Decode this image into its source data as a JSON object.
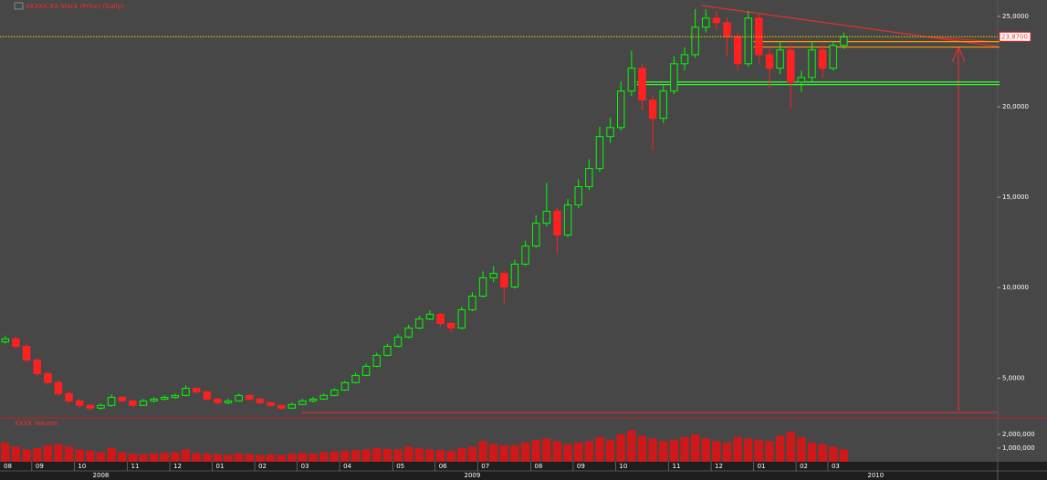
{
  "chart_data": [
    {
      "type": "candlestick",
      "title": "XXXXX.XX Stock (Price) (Daily)",
      "categories": [
        "08",
        null,
        null,
        "09",
        null,
        null,
        null,
        "10",
        null,
        null,
        null,
        null,
        "11",
        null,
        null,
        null,
        "12",
        null,
        null,
        null,
        "01",
        null,
        null,
        null,
        "02",
        null,
        null,
        null,
        "03",
        null,
        null,
        null,
        "04",
        null,
        null,
        null,
        null,
        "05",
        null,
        null,
        null,
        "06",
        null,
        null,
        null,
        "07",
        null,
        null,
        null,
        null,
        "08",
        null,
        null,
        null,
        "09",
        null,
        null,
        null,
        "10",
        null,
        null,
        null,
        null,
        "11",
        null,
        null,
        null,
        "12",
        null,
        null,
        null,
        "01",
        null,
        null,
        null,
        "02",
        null,
        null,
        "03",
        null,
        null,
        null,
        null,
        null,
        null,
        null,
        null,
        null,
        null,
        null,
        null,
        null,
        null,
        null
      ],
      "year_labels": [
        null,
        null,
        null,
        null,
        null,
        null,
        null,
        null,
        null,
        "2008",
        null,
        null,
        null,
        null,
        null,
        null,
        null,
        null,
        null,
        null,
        null,
        null,
        null,
        null,
        null,
        null,
        null,
        null,
        null,
        null,
        null,
        null,
        null,
        null,
        null,
        null,
        null,
        null,
        null,
        null,
        null,
        null,
        null,
        null,
        "2009",
        null,
        null,
        null,
        null,
        null,
        null,
        null,
        null,
        null,
        null,
        null,
        null,
        null,
        null,
        null,
        null,
        null,
        null,
        null,
        null,
        null,
        null,
        null,
        null,
        null,
        null,
        null,
        null,
        null,
        null,
        null,
        null,
        null,
        null,
        null,
        null,
        null,
        "2010",
        null,
        null,
        null,
        null,
        null,
        null,
        null,
        null,
        null,
        null,
        null
      ],
      "open": [
        7.0,
        7.17,
        6.76,
        6.0,
        5.25,
        4.75,
        4.14,
        3.74,
        3.49,
        3.34,
        3.49,
        3.94,
        3.74,
        3.49,
        3.74,
        3.84,
        3.94,
        4.04,
        4.44,
        4.24,
        3.84,
        3.64,
        3.74,
        4.04,
        3.84,
        3.64,
        3.49,
        3.34,
        3.54,
        3.74,
        3.84,
        4.04,
        4.34,
        4.75,
        5.15,
        5.65,
        6.26,
        6.76,
        7.27,
        7.77,
        8.27,
        8.53,
        8.02,
        7.77,
        8.78,
        9.53,
        10.54,
        10.79,
        10.04,
        11.3,
        12.3,
        13.56,
        14.22,
        12.91,
        14.57,
        15.58,
        16.59,
        18.35,
        18.85,
        20.87,
        22.13,
        20.37,
        19.36,
        20.87,
        22.38,
        22.88,
        24.4,
        24.9,
        24.65,
        23.89,
        22.38,
        24.9,
        22.88,
        22.13,
        23.14,
        21.37,
        21.62,
        23.14,
        22.13,
        23.39,
        null,
        null,
        null,
        null,
        null,
        null,
        null,
        null,
        null,
        null,
        null,
        null,
        null,
        null
      ],
      "high": [
        7.35,
        7.3,
        6.9,
        6.1,
        5.4,
        4.9,
        4.25,
        3.85,
        3.55,
        3.6,
        4.1,
        4.0,
        3.8,
        3.85,
        3.95,
        4.05,
        4.15,
        4.6,
        4.5,
        4.3,
        3.9,
        3.85,
        4.15,
        4.1,
        3.9,
        3.7,
        3.55,
        3.65,
        3.85,
        3.95,
        4.15,
        4.45,
        4.85,
        5.3,
        5.8,
        6.4,
        6.9,
        7.45,
        7.95,
        8.45,
        8.75,
        8.6,
        8.1,
        8.95,
        9.75,
        10.9,
        11.2,
        10.95,
        11.55,
        12.6,
        14.0,
        15.8,
        14.4,
        14.9,
        16.0,
        17.1,
        18.9,
        19.4,
        21.4,
        23.1,
        22.4,
        20.6,
        21.2,
        22.8,
        23.3,
        25.4,
        25.4,
        25.3,
        24.9,
        24.1,
        25.3,
        25.1,
        23.2,
        23.6,
        23.4,
        22.0,
        23.6,
        23.4,
        23.6,
        24.1,
        null,
        null,
        null,
        null,
        null,
        null,
        null,
        null,
        null,
        null,
        null,
        null,
        null,
        null
      ],
      "low": [
        6.9,
        6.6,
        5.85,
        5.1,
        4.6,
        4.0,
        3.6,
        3.35,
        3.2,
        3.25,
        3.4,
        3.65,
        3.4,
        3.45,
        3.65,
        3.75,
        3.85,
        4.0,
        4.15,
        3.75,
        3.55,
        3.55,
        3.7,
        3.75,
        3.55,
        3.4,
        3.25,
        3.3,
        3.5,
        3.65,
        3.8,
        4.0,
        4.3,
        4.7,
        5.1,
        5.6,
        6.2,
        6.7,
        7.2,
        7.7,
        8.2,
        7.85,
        7.55,
        7.7,
        8.7,
        9.45,
        10.3,
        9.1,
        9.95,
        11.2,
        12.2,
        13.4,
        11.9,
        12.8,
        14.4,
        15.4,
        16.4,
        18.0,
        18.7,
        20.6,
        19.8,
        17.6,
        19.1,
        20.7,
        22.0,
        22.7,
        24.1,
        24.2,
        22.8,
        22.0,
        22.2,
        22.4,
        21.0,
        21.8,
        19.9,
        20.8,
        21.4,
        21.6,
        22.0,
        23.2,
        null,
        null,
        null,
        null,
        null,
        null,
        null,
        null,
        null,
        null,
        null,
        null,
        null,
        null
      ],
      "close": [
        7.17,
        6.76,
        6.0,
        5.25,
        4.75,
        4.14,
        3.74,
        3.49,
        3.34,
        3.49,
        3.94,
        3.74,
        3.49,
        3.74,
        3.84,
        3.94,
        4.04,
        4.44,
        4.24,
        3.84,
        3.64,
        3.74,
        4.04,
        3.84,
        3.64,
        3.49,
        3.34,
        3.54,
        3.74,
        3.84,
        4.04,
        4.34,
        4.75,
        5.15,
        5.65,
        6.26,
        6.76,
        7.27,
        7.77,
        8.27,
        8.53,
        8.02,
        7.77,
        8.78,
        9.53,
        10.54,
        10.79,
        10.04,
        11.3,
        12.3,
        13.56,
        14.22,
        12.91,
        14.57,
        15.58,
        16.59,
        18.35,
        18.85,
        20.87,
        22.13,
        20.37,
        19.36,
        20.87,
        22.38,
        22.88,
        24.4,
        24.9,
        24.65,
        23.89,
        22.38,
        24.9,
        22.88,
        22.13,
        23.14,
        21.37,
        21.62,
        23.14,
        22.13,
        23.39,
        23.87,
        null,
        null,
        null,
        null,
        null,
        null,
        null,
        null,
        null,
        null,
        null,
        null,
        null,
        null
      ],
      "up_color": "#00ff00",
      "down_color": "#ff2020",
      "ylim": [
        3.1,
        25.65
      ],
      "yticks": [
        {
          "value": 5,
          "label": "5,0000"
        },
        {
          "value": 10,
          "label": "10,0000"
        },
        {
          "value": 15,
          "label": "15,0000"
        },
        {
          "value": 20,
          "label": "20,0000"
        },
        {
          "value": 25,
          "label": "25,0000"
        }
      ],
      "last_price": {
        "value": 23.87,
        "label": "23,8700"
      },
      "support_levels": [
        21.37,
        21.23
      ],
      "support_color": "#33ff33",
      "resistance_levels": [
        23.6,
        23.3
      ],
      "resistance_color": "#ff9900"
    },
    {
      "type": "bar",
      "title": "XXXX Volume",
      "values": [
        1400000,
        1100000,
        900000,
        1000000,
        1200000,
        1300000,
        1100000,
        900000,
        800000,
        700000,
        1000000,
        700000,
        600000,
        550000,
        600000,
        650000,
        700000,
        900000,
        650000,
        600000,
        550000,
        500000,
        600000,
        550000,
        500000,
        550000,
        500000,
        600000,
        650000,
        600000,
        700000,
        750000,
        800000,
        850000,
        900000,
        1000000,
        950000,
        900000,
        1100000,
        1000000,
        900000,
        850000,
        800000,
        1000000,
        1100000,
        1500000,
        1300000,
        1200000,
        1200000,
        1400000,
        1600000,
        1700000,
        1500000,
        1300000,
        1400000,
        1500000,
        1800000,
        1600000,
        2000000,
        2300000,
        1900000,
        1700000,
        1500000,
        1600000,
        1800000,
        2000000,
        1700000,
        1500000,
        1400000,
        1800000,
        1700000,
        1600000,
        1500000,
        1900000,
        2200000,
        1800000,
        1400000,
        1300000,
        1100000,
        900000,
        null,
        null,
        null,
        null,
        null,
        null,
        null,
        null,
        null,
        null,
        null,
        null,
        null,
        null
      ],
      "color": "#d01818",
      "ylim": [
        0,
        3200000
      ],
      "yticks": [
        {
          "value": 1000000,
          "label": "1,000,000"
        },
        {
          "value": 2000000,
          "label": "2,000,000"
        }
      ]
    }
  ]
}
